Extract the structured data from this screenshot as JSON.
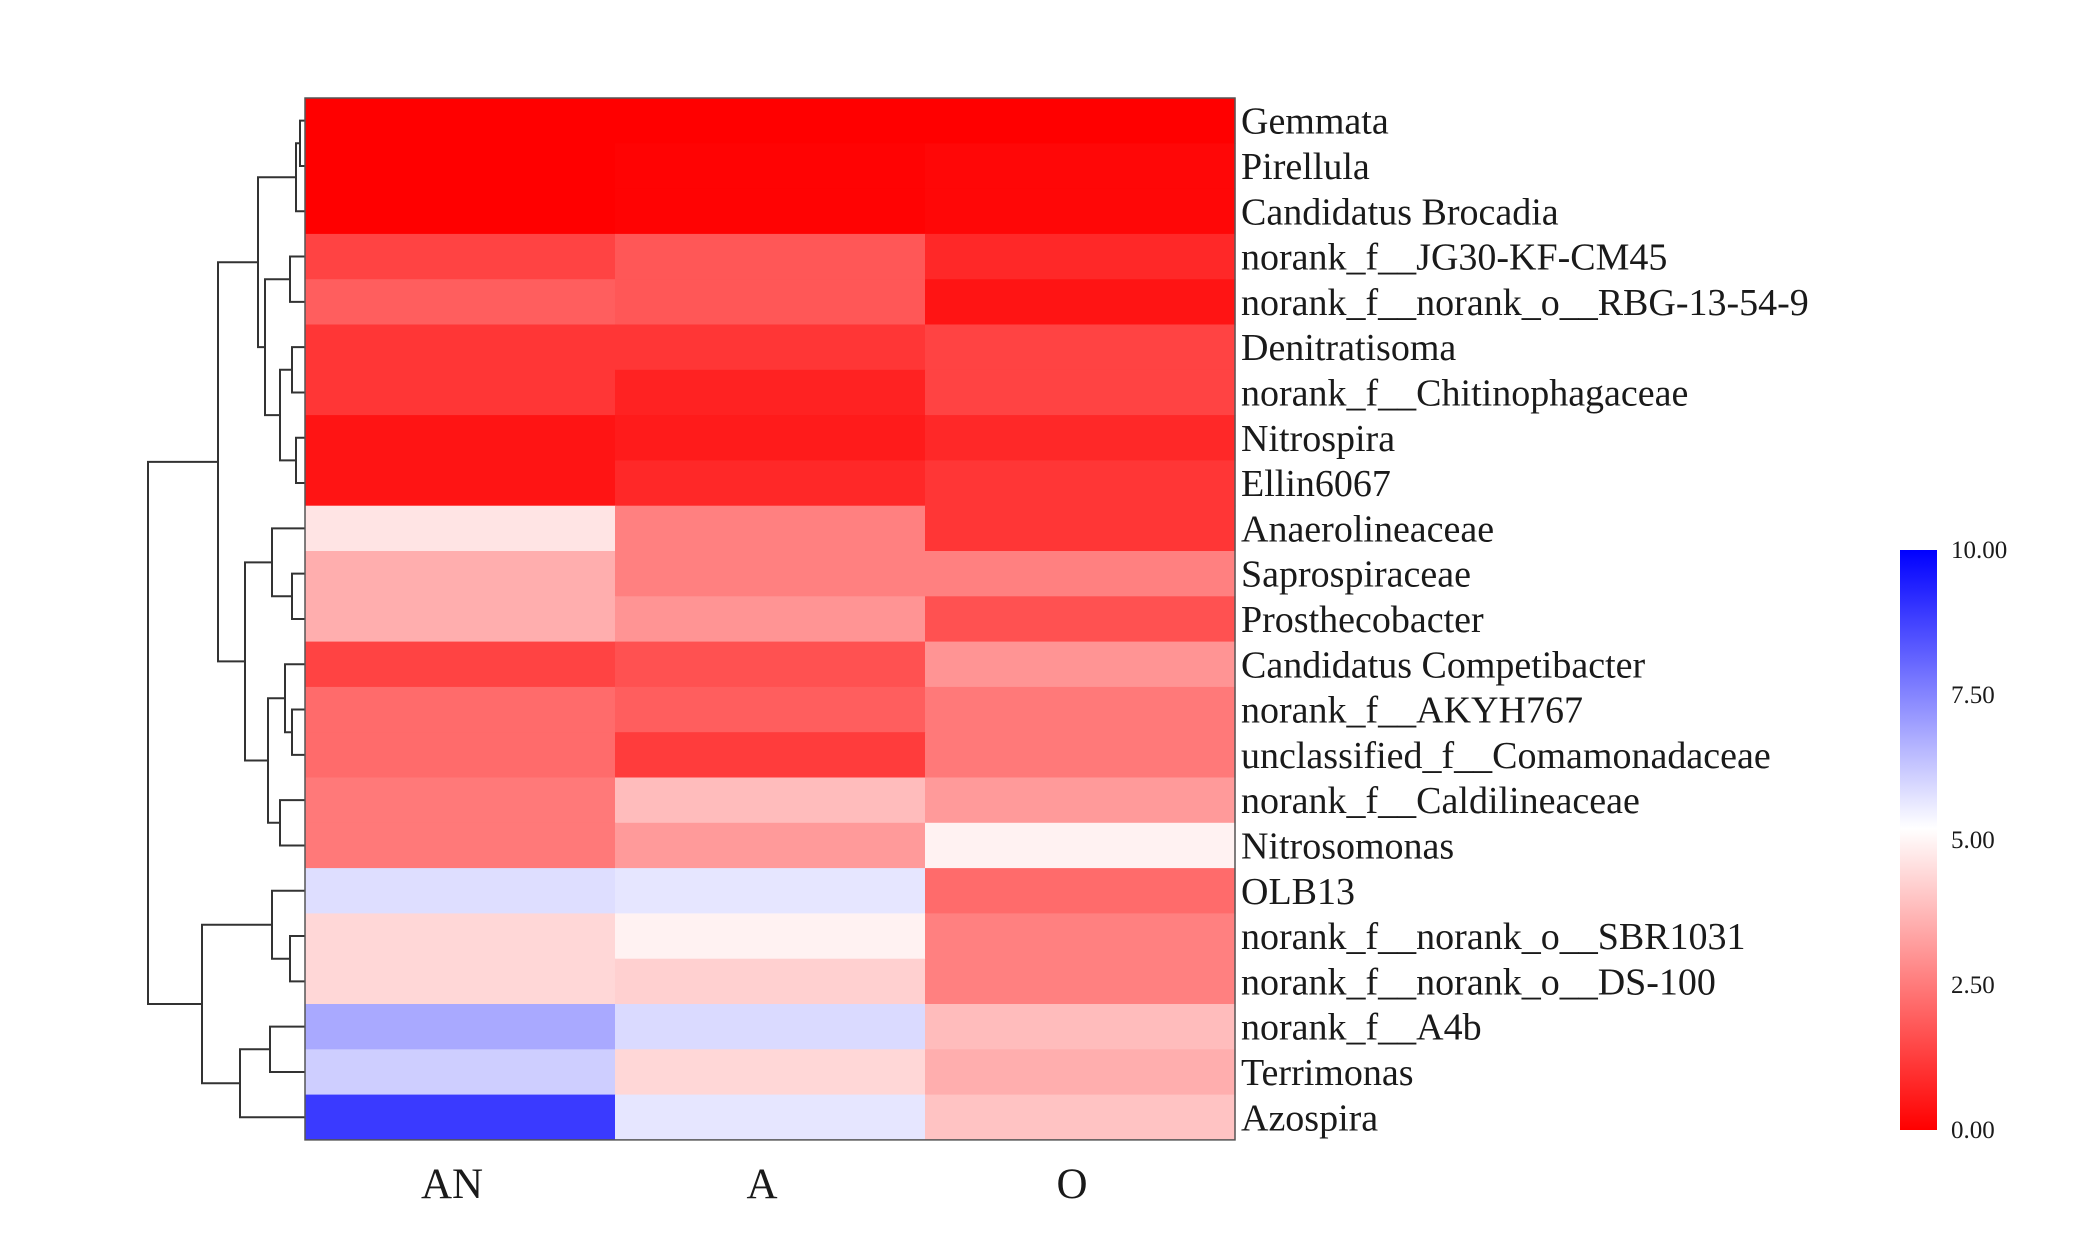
{
  "chart_data": {
    "type": "heatmap",
    "columns": [
      "AN",
      "A",
      "O"
    ],
    "rows": [
      "Gemmata",
      "Pirellula",
      "Candidatus Brocadia",
      "norank_f__JG30-KF-CM45",
      "norank_f__norank_o__RBG-13-54-9",
      "Denitratisoma",
      "norank_f__Chitinophagaceae",
      "Nitrospira",
      "Ellin6067",
      "Anaerolineaceae",
      "Saprospiraceae",
      "Prosthecobacter",
      "Candidatus Competibacter",
      "norank_f__AKYH767",
      "unclassified_f__Comamonadaceae",
      "norank_f__Caldilineaceae",
      "Nitrosomonas",
      "OLB13",
      "norank_f__norank_o__SBR1031",
      "norank_f__norank_o__DS-100",
      "norank_f__A4b",
      "Terrimonas",
      "Azospira"
    ],
    "values": [
      [
        0.0,
        0.0,
        0.0
      ],
      [
        0.0,
        0.05,
        0.1
      ],
      [
        0.0,
        0.05,
        0.1
      ],
      [
        1.0,
        1.3,
        0.6
      ],
      [
        1.4,
        1.3,
        0.3
      ],
      [
        0.8,
        0.8,
        1.0
      ],
      [
        0.8,
        0.5,
        1.0
      ],
      [
        0.3,
        0.4,
        0.6
      ],
      [
        0.3,
        0.6,
        0.8
      ],
      [
        3.4,
        1.9,
        0.8
      ],
      [
        2.6,
        1.9,
        1.9
      ],
      [
        2.6,
        2.2,
        1.2
      ],
      [
        1.0,
        1.2,
        2.2
      ],
      [
        1.6,
        1.4,
        1.8
      ],
      [
        1.6,
        0.9,
        1.8
      ],
      [
        1.8,
        2.8,
        2.3
      ],
      [
        1.8,
        2.3,
        3.6
      ],
      [
        4.6,
        4.4,
        1.6
      ],
      [
        3.2,
        3.6,
        1.9
      ],
      [
        3.2,
        3.1,
        1.9
      ],
      [
        5.9,
        4.7,
        2.8
      ],
      [
        5.0,
        3.2,
        2.6
      ],
      [
        8.6,
        4.4,
        2.9
      ]
    ],
    "colorbar": {
      "min": 0,
      "max": 10,
      "ticks": [
        "0.00",
        "2.50",
        "5.00",
        "7.50",
        "10.00"
      ],
      "low_color": "#ff0000",
      "mid_color": "#ffffff",
      "high_color": "#0000ff"
    },
    "dendrogram": "left",
    "legend_position": "right"
  }
}
